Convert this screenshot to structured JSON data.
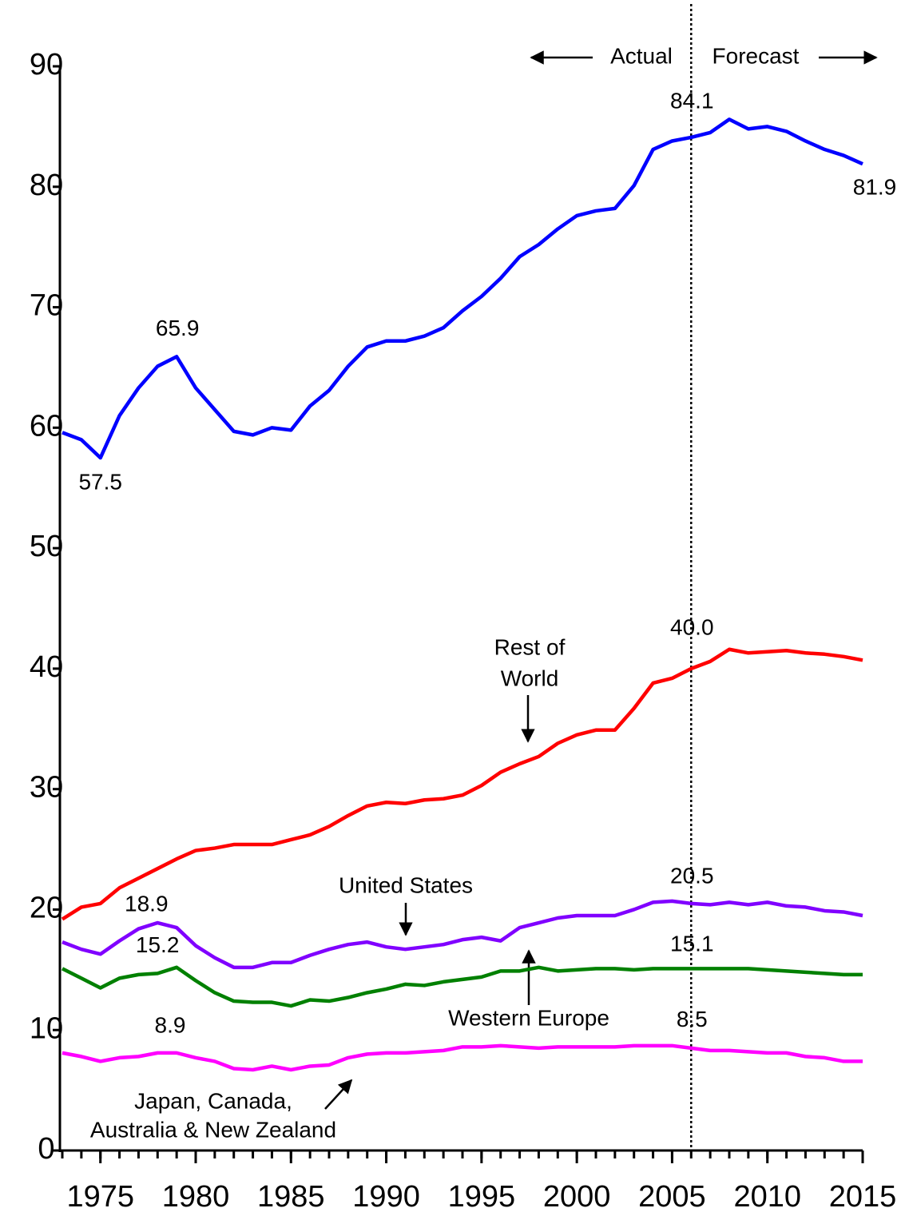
{
  "chart_data": {
    "type": "line",
    "x": [
      1973,
      1974,
      1975,
      1976,
      1977,
      1978,
      1979,
      1980,
      1981,
      1982,
      1983,
      1984,
      1985,
      1986,
      1987,
      1988,
      1989,
      1990,
      1991,
      1992,
      1993,
      1994,
      1995,
      1996,
      1997,
      1998,
      1999,
      2000,
      2001,
      2002,
      2003,
      2004,
      2005,
      2006,
      2007,
      2008,
      2009,
      2010,
      2011,
      2012,
      2013,
      2014,
      2015
    ],
    "series": [
      {
        "color": "#0000ff",
        "values": [
          59.6,
          59.0,
          57.5,
          61.0,
          63.3,
          65.1,
          65.9,
          63.3,
          61.5,
          59.7,
          59.4,
          60.0,
          59.8,
          61.8,
          63.1,
          65.1,
          66.7,
          67.2,
          67.2,
          67.6,
          68.3,
          69.7,
          70.9,
          72.4,
          74.2,
          75.2,
          76.5,
          77.6,
          78.0,
          78.2,
          80.1,
          83.1,
          83.8,
          84.1,
          84.5,
          85.6,
          84.8,
          85.0,
          84.6,
          83.8,
          83.1,
          82.6,
          81.9
        ],
        "value_labels": [
          null,
          null,
          "57.5",
          null,
          null,
          null,
          "65.9",
          null,
          null,
          null,
          null,
          null,
          null,
          null,
          null,
          null,
          null,
          null,
          null,
          null,
          null,
          null,
          null,
          null,
          null,
          null,
          null,
          null,
          null,
          null,
          null,
          null,
          null,
          "84.1",
          null,
          null,
          null,
          null,
          null,
          null,
          null,
          null,
          "81.9"
        ]
      },
      {
        "name": [
          "Rest of",
          "World"
        ],
        "color": "#ff0000",
        "values": [
          19.2,
          20.2,
          20.5,
          21.8,
          22.6,
          23.4,
          24.2,
          24.9,
          25.1,
          25.4,
          25.4,
          25.4,
          25.8,
          26.2,
          26.9,
          27.8,
          28.6,
          28.9,
          28.8,
          29.1,
          29.2,
          29.5,
          30.3,
          31.4,
          32.1,
          32.7,
          33.8,
          34.5,
          34.9,
          34.9,
          36.7,
          38.8,
          39.2,
          40.0,
          40.6,
          41.6,
          41.3,
          41.4,
          41.5,
          41.3,
          41.2,
          41.0,
          40.7
        ],
        "value_labels": [
          null,
          null,
          null,
          null,
          null,
          null,
          null,
          null,
          null,
          null,
          null,
          null,
          null,
          null,
          null,
          null,
          null,
          null,
          null,
          null,
          null,
          null,
          null,
          null,
          null,
          null,
          null,
          null,
          null,
          null,
          null,
          null,
          null,
          "40.0",
          null,
          null,
          null,
          null,
          null,
          null,
          null,
          null,
          null
        ]
      },
      {
        "name": [
          "United States"
        ],
        "color": "#8000ff",
        "values": [
          17.3,
          16.7,
          16.3,
          17.4,
          18.4,
          18.9,
          18.5,
          17.0,
          16.0,
          15.2,
          15.2,
          15.6,
          15.6,
          16.2,
          16.7,
          17.1,
          17.3,
          16.9,
          16.7,
          16.9,
          17.1,
          17.5,
          17.7,
          17.4,
          18.5,
          18.9,
          19.3,
          19.5,
          19.5,
          19.5,
          20.0,
          20.6,
          20.7,
          20.5,
          20.4,
          20.6,
          20.4,
          20.6,
          20.3,
          20.2,
          19.9,
          19.8,
          19.5
        ],
        "value_labels": [
          null,
          null,
          null,
          null,
          null,
          "18.9",
          null,
          null,
          null,
          null,
          null,
          null,
          null,
          null,
          null,
          null,
          null,
          null,
          null,
          null,
          null,
          null,
          null,
          null,
          null,
          null,
          null,
          null,
          null,
          null,
          null,
          null,
          null,
          "20.5",
          null,
          null,
          null,
          null,
          null,
          null,
          null,
          null,
          null
        ]
      },
      {
        "name": [
          "Western Europe"
        ],
        "color": "#008000",
        "values": [
          15.1,
          14.3,
          13.5,
          14.3,
          14.6,
          14.7,
          15.2,
          14.1,
          13.1,
          12.4,
          12.3,
          12.3,
          12.0,
          12.5,
          12.4,
          12.7,
          13.1,
          13.4,
          13.8,
          13.7,
          14.0,
          14.2,
          14.4,
          14.9,
          14.9,
          15.2,
          14.9,
          15.0,
          15.1,
          15.1,
          15.0,
          15.1,
          15.1,
          15.1,
          15.1,
          15.1,
          15.1,
          15.0,
          14.9,
          14.8,
          14.7,
          14.6,
          14.6
        ],
        "value_labels": [
          null,
          null,
          null,
          null,
          null,
          null,
          "15.2",
          null,
          null,
          null,
          null,
          null,
          null,
          null,
          null,
          null,
          null,
          null,
          null,
          null,
          null,
          null,
          null,
          null,
          null,
          null,
          null,
          null,
          null,
          null,
          null,
          null,
          null,
          "15.1",
          null,
          null,
          null,
          null,
          null,
          null,
          null,
          null,
          null
        ]
      },
      {
        "name": [
          "Japan, Canada,",
          "Australia & New Zealand"
        ],
        "color": "#ff00ff",
        "values": [
          8.1,
          7.8,
          7.4,
          7.7,
          7.8,
          8.1,
          8.1,
          7.7,
          7.4,
          6.8,
          6.7,
          7.0,
          6.7,
          7.0,
          7.1,
          7.7,
          8.0,
          8.1,
          8.1,
          8.2,
          8.3,
          8.6,
          8.6,
          8.7,
          8.6,
          8.5,
          8.6,
          8.6,
          8.6,
          8.6,
          8.7,
          8.7,
          8.7,
          8.5,
          8.3,
          8.3,
          8.2,
          8.1,
          8.1,
          7.8,
          7.7,
          7.4,
          7.4
        ],
        "value_labels": [
          null,
          null,
          null,
          null,
          null,
          null,
          null,
          null,
          null,
          null,
          null,
          null,
          null,
          null,
          null,
          null,
          null,
          null,
          null,
          null,
          null,
          null,
          null,
          null,
          null,
          null,
          null,
          null,
          null,
          null,
          null,
          null,
          null,
          "8.5",
          null,
          null,
          null,
          null,
          null,
          null,
          null,
          null,
          null
        ]
      }
    ],
    "annotations": [
      "8.9",
      "Actual",
      "Forecast"
    ],
    "forecast_start": 2006,
    "xlim": [
      1973,
      2015
    ],
    "xticks": [
      1975,
      1980,
      1985,
      1990,
      1995,
      2000,
      2005,
      2010,
      2015
    ],
    "ylim": [
      0,
      90
    ],
    "yticks": [
      0,
      10,
      20,
      30,
      40,
      50,
      60,
      70,
      80,
      90
    ],
    "grid": false
  }
}
